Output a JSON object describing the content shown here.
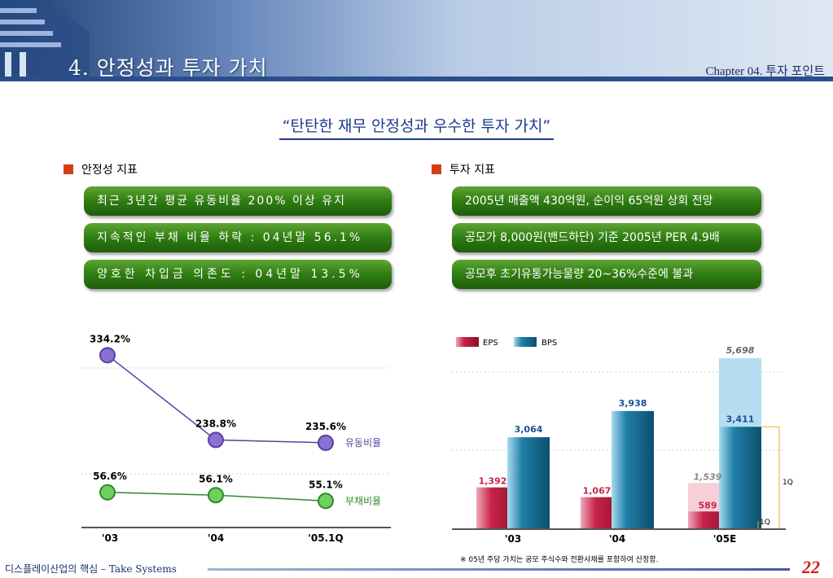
{
  "header": {
    "title": "4. 안정성과 투자 가치",
    "chapter": "Chapter 04. 투자 포인트"
  },
  "headline": "“탄탄한 재무 안정성과 우수한 투자 가치”",
  "left_section": {
    "heading": "안정성 지표",
    "items": [
      "최근 3년간 평균 유동비율 200% 이상 유지",
      "지속적인 부채 비율 하락 : 04년말 56.1%",
      "양호한 차입금 의존도 : 04년말 13.5%"
    ]
  },
  "right_section": {
    "heading": "투자 지표",
    "items": [
      "2005년 매출액 430억원, 순이익 65억원 상회 전망",
      "공모가 8,000원(밴드하단) 기준 2005년 PER 4.9배",
      "공모후 초기유통가능물량 20~36%수준에 불과"
    ]
  },
  "chart_data": [
    {
      "type": "line",
      "categories": [
        "'03",
        "'04",
        "'05.1Q"
      ],
      "series": [
        {
          "name": "유동비율",
          "values": [
            334.2,
            238.8,
            235.6
          ],
          "labels": [
            "334.2%",
            "238.8%",
            "235.6%"
          ],
          "color": "#5a3fa0"
        },
        {
          "name": "부채비율",
          "values": [
            56.6,
            56.1,
            55.1
          ],
          "labels": [
            "56.6%",
            "56.1%",
            "55.1%"
          ],
          "color": "#2f8a2a"
        }
      ]
    },
    {
      "type": "bar",
      "categories": [
        "'03",
        "'04",
        "'05E"
      ],
      "series": [
        {
          "name": "EPS",
          "values": [
            1392,
            1067,
            1539
          ],
          "labels": [
            "1,392",
            "1,067",
            "1,539"
          ],
          "color": "#c8244a"
        },
        {
          "name": "BPS",
          "values": [
            3064,
            3938,
            5698
          ],
          "labels": [
            "3,064",
            "3,938",
            "5,698"
          ],
          "color": "#1f7fa8"
        }
      ],
      "partial_labels": {
        "eps_1q": "589",
        "bps_1q": "3,411",
        "q_label": "1Q"
      },
      "partial_values": {
        "eps_1q": 589,
        "bps_1q": 3411
      }
    }
  ],
  "note": "※ 05년 주당 가치는 공모 주식수와 전환사채를 포함하여 산정함.",
  "footer": {
    "text": "디스플레이산업의 핵심 – Take Systems",
    "page": "22"
  }
}
